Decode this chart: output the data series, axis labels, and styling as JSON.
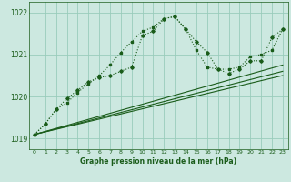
{
  "bg_color": "#cce8e0",
  "grid_color": "#99ccbb",
  "line_color": "#1a5c1a",
  "title": "Graphe pression niveau de la mer (hPa)",
  "xlim": [
    -0.5,
    23.5
  ],
  "ylim": [
    1018.75,
    1022.25
  ],
  "yticks": [
    1019,
    1020,
    1021,
    1022
  ],
  "xticks": [
    0,
    1,
    2,
    3,
    4,
    5,
    6,
    7,
    8,
    9,
    10,
    11,
    12,
    13,
    14,
    15,
    16,
    17,
    18,
    19,
    20,
    21,
    22,
    23
  ],
  "series1_x": [
    0,
    1,
    2,
    3,
    4,
    5,
    6,
    7,
    8,
    9,
    10,
    11,
    12,
    13,
    14,
    15,
    16,
    17,
    18,
    19,
    20,
    21,
    22,
    23
  ],
  "series1_y": [
    1019.1,
    1019.35,
    1019.7,
    1019.85,
    1020.1,
    1020.3,
    1020.5,
    1020.75,
    1021.05,
    1021.3,
    1021.55,
    1021.65,
    1021.85,
    1021.9,
    1021.6,
    1021.1,
    1020.7,
    1020.65,
    1020.65,
    1020.7,
    1020.95,
    1021.0,
    1021.1,
    1021.6
  ],
  "series2_x": [
    0,
    1,
    2,
    3,
    4,
    5,
    6,
    7,
    8,
    9,
    10,
    11,
    12,
    13,
    14,
    15,
    16,
    17,
    18,
    19,
    20,
    21,
    22,
    23
  ],
  "series2_y": [
    1019.1,
    1019.35,
    1019.7,
    1019.95,
    1020.15,
    1020.35,
    1020.45,
    1020.5,
    1020.6,
    1020.7,
    1021.45,
    1021.55,
    1021.85,
    1021.9,
    1021.6,
    1021.3,
    1021.05,
    1020.65,
    1020.55,
    1020.65,
    1020.85,
    1020.85,
    1021.4,
    1021.6
  ],
  "series3_x": [
    0,
    23
  ],
  "series3_y": [
    1019.1,
    1020.75
  ],
  "series4_x": [
    0,
    23
  ],
  "series4_y": [
    1019.1,
    1020.6
  ],
  "series5_x": [
    0,
    23
  ],
  "series5_y": [
    1019.1,
    1020.5
  ]
}
